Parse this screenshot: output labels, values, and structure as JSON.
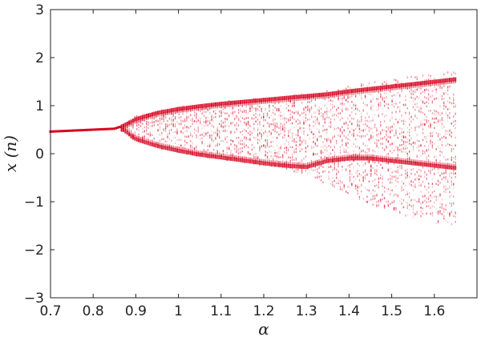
{
  "chart_data": {
    "type": "scatter",
    "title": "",
    "xlabel": "α",
    "ylabel": "x (n)",
    "xlim": [
      0.7,
      1.7
    ],
    "ylim": [
      -3,
      3
    ],
    "xticks": [
      "0.7",
      "0.8",
      "0.9",
      "1",
      "1.1",
      "1.2",
      "1.3",
      "1.4",
      "1.5",
      "1.6"
    ],
    "yticks": [
      "3",
      "2",
      "1",
      "0",
      "−1",
      "−2",
      "−3"
    ],
    "grid": false,
    "legend": false,
    "marker_color": "#d6001c",
    "series": [
      {
        "x": [
          0.7,
          0.75,
          0.8,
          0.85,
          0.87,
          0.9,
          0.95,
          1.0,
          1.05,
          1.1,
          1.15,
          1.2,
          1.25,
          1.3,
          1.35,
          1.4,
          1.45,
          1.5,
          1.55,
          1.6,
          1.65
        ],
        "upper_branch": [
          0.46,
          0.48,
          0.5,
          0.52,
          0.58,
          0.72,
          0.85,
          0.93,
          0.99,
          1.04,
          1.08,
          1.12,
          1.16,
          1.2,
          1.24,
          1.3,
          1.35,
          1.4,
          1.45,
          1.5,
          1.55
        ],
        "lower_branch": [
          0.46,
          0.48,
          0.5,
          0.52,
          0.5,
          0.3,
          0.16,
          0.06,
          -0.02,
          -0.08,
          -0.14,
          -0.2,
          -0.25,
          -0.28,
          -0.15,
          -0.1,
          -0.1,
          -0.15,
          -0.2,
          -0.25,
          -0.3
        ],
        "spread_top": [
          0.46,
          0.48,
          0.5,
          0.52,
          0.6,
          0.78,
          0.9,
          0.98,
          1.03,
          1.08,
          1.12,
          1.16,
          1.2,
          1.26,
          1.32,
          1.4,
          1.48,
          1.55,
          1.62,
          1.68,
          1.7
        ],
        "spread_bottom": [
          0.46,
          0.48,
          0.5,
          0.52,
          0.46,
          0.25,
          0.12,
          0.02,
          -0.06,
          -0.12,
          -0.18,
          -0.25,
          -0.32,
          -0.45,
          -0.65,
          -0.85,
          -1.05,
          -1.2,
          -1.35,
          -1.45,
          -1.5
        ]
      }
    ]
  }
}
